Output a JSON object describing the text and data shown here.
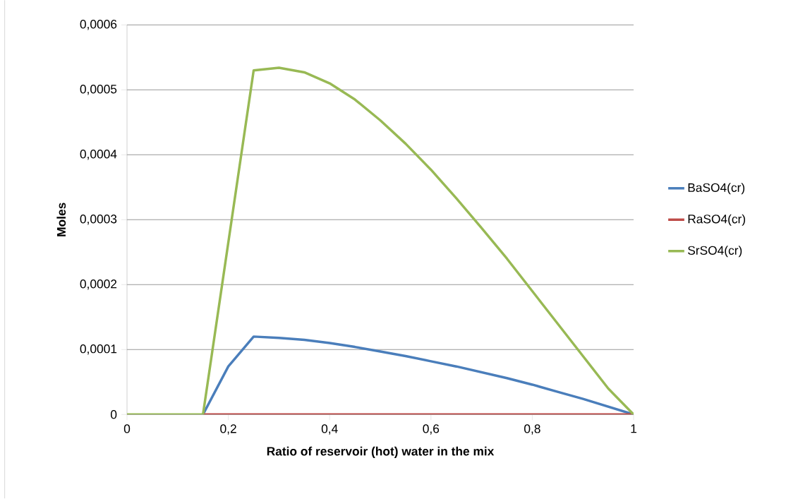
{
  "chart_data": {
    "type": "line",
    "xlabel": "Ratio of reservoir (hot) water in the mix",
    "ylabel": "Moles",
    "x": [
      0,
      0.05,
      0.1,
      0.15,
      0.2,
      0.25,
      0.3,
      0.35,
      0.4,
      0.45,
      0.5,
      0.55,
      0.6,
      0.65,
      0.7,
      0.75,
      0.8,
      0.85,
      0.9,
      0.95,
      1
    ],
    "series": [
      {
        "name": "BaSO4(cr)",
        "color": "#4a7ebb",
        "values": [
          null,
          null,
          null,
          0,
          7.4e-05,
          0.00012,
          0.000118,
          0.000115,
          0.00011,
          0.000104,
          9.7e-05,
          9e-05,
          8.2e-05,
          7.4e-05,
          6.5e-05,
          5.6e-05,
          4.6e-05,
          3.5e-05,
          2.4e-05,
          1.2e-05,
          0
        ]
      },
      {
        "name": "RaSO4(cr)",
        "color": "#be4b48",
        "values": [
          null,
          null,
          null,
          0,
          0,
          0,
          0,
          0,
          0,
          0,
          0,
          0,
          0,
          0,
          0,
          0,
          0,
          0,
          0,
          0,
          0
        ]
      },
      {
        "name": "SrSO4(cr)",
        "color": "#98b954",
        "values": [
          0,
          0,
          0,
          0,
          0.000265,
          0.00053,
          0.000534,
          0.000527,
          0.00051,
          0.000485,
          0.000453,
          0.000417,
          0.000377,
          0.000333,
          0.000287,
          0.00024,
          0.00019,
          0.00014,
          9e-05,
          4e-05,
          0
        ]
      }
    ],
    "xlim": [
      0,
      1
    ],
    "ylim": [
      0,
      0.0006
    ],
    "xticks": [
      {
        "value": 0,
        "label": "0"
      },
      {
        "value": 0.2,
        "label": "0,2"
      },
      {
        "value": 0.4,
        "label": "0,4"
      },
      {
        "value": 0.6,
        "label": "0,6"
      },
      {
        "value": 0.8,
        "label": "0,8"
      },
      {
        "value": 1,
        "label": "1"
      }
    ],
    "yticks": [
      {
        "value": 0,
        "label": "0"
      },
      {
        "value": 0.0001,
        "label": "0,0001"
      },
      {
        "value": 0.0002,
        "label": "0,0002"
      },
      {
        "value": 0.0003,
        "label": "0,0003"
      },
      {
        "value": 0.0004,
        "label": "0,0004"
      },
      {
        "value": 0.0005,
        "label": "0,0005"
      },
      {
        "value": 0.0006,
        "label": "0,0006"
      }
    ],
    "grid": "y",
    "legend": "right",
    "marker": "none",
    "line_style": "solid"
  }
}
